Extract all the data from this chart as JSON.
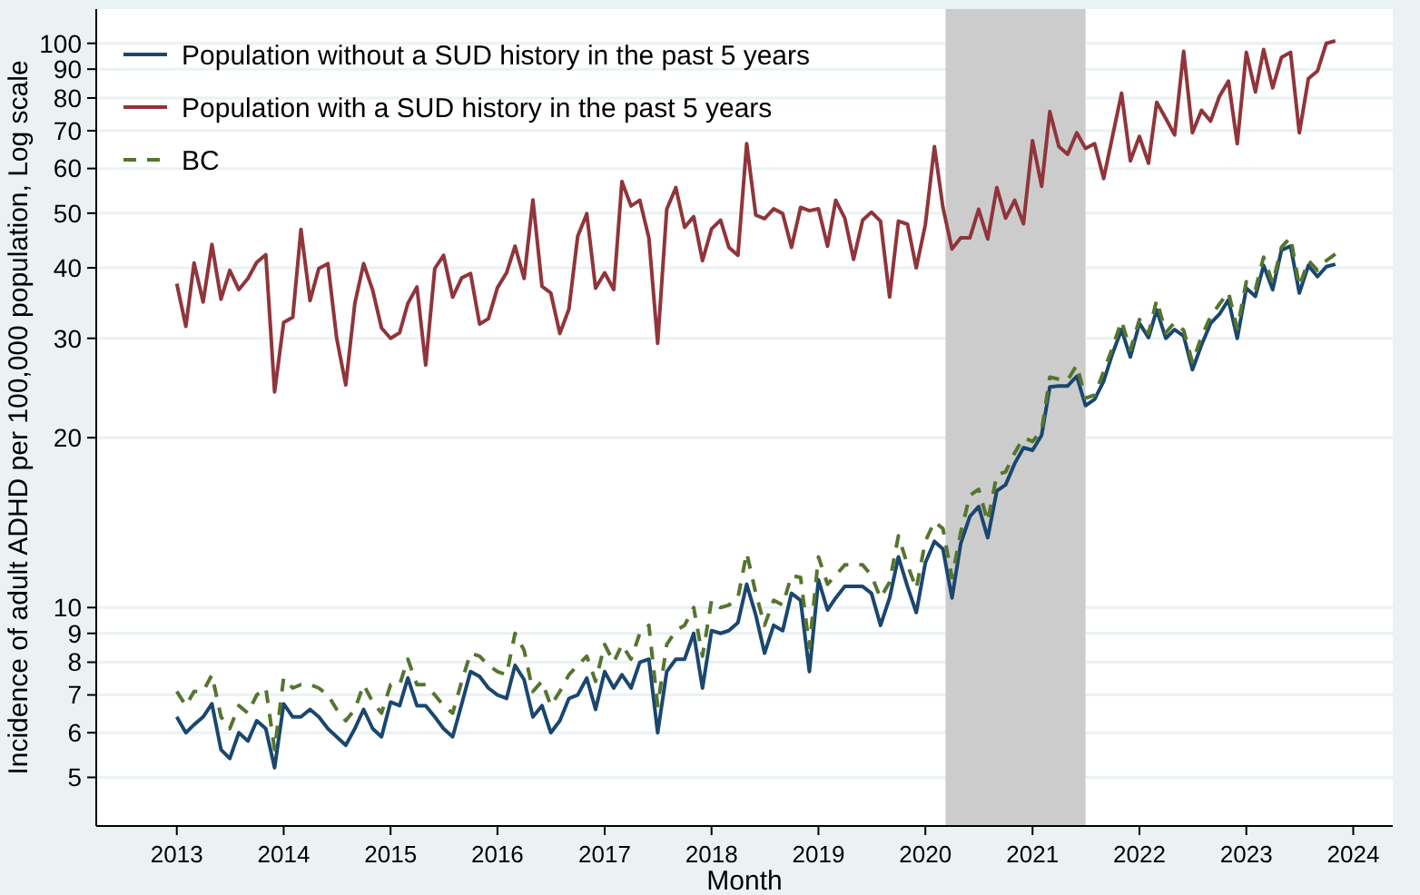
{
  "chart_data": {
    "type": "line",
    "xlabel": "Month",
    "ylabel": "Incidence of adult ADHD per 100,000 population, Log scale",
    "log": "y",
    "grid": "y",
    "legend": "top left",
    "x": [
      "2013-01",
      "2013-02",
      "2013-03",
      "2013-04",
      "2013-05",
      "2013-06",
      "2013-07",
      "2013-08",
      "2013-09",
      "2013-10",
      "2013-11",
      "2013-12",
      "2014-01",
      "2014-02",
      "2014-03",
      "2014-04",
      "2014-05",
      "2014-06",
      "2014-07",
      "2014-08",
      "2014-09",
      "2014-10",
      "2014-11",
      "2014-12",
      "2015-01",
      "2015-02",
      "2015-03",
      "2015-04",
      "2015-05",
      "2015-06",
      "2015-07",
      "2015-08",
      "2015-09",
      "2015-10",
      "2015-11",
      "2015-12",
      "2016-01",
      "2016-02",
      "2016-03",
      "2016-04",
      "2016-05",
      "2016-06",
      "2016-07",
      "2016-08",
      "2016-09",
      "2016-10",
      "2016-11",
      "2016-12",
      "2017-01",
      "2017-02",
      "2017-03",
      "2017-04",
      "2017-05",
      "2017-06",
      "2017-07",
      "2017-08",
      "2017-09",
      "2017-10",
      "2017-11",
      "2017-12",
      "2018-01",
      "2018-02",
      "2018-03",
      "2018-04",
      "2018-05",
      "2018-06",
      "2018-07",
      "2018-08",
      "2018-09",
      "2018-10",
      "2018-11",
      "2018-12",
      "2019-01",
      "2019-02",
      "2019-03",
      "2019-04",
      "2019-05",
      "2019-06",
      "2019-07",
      "2019-08",
      "2019-09",
      "2019-10",
      "2019-11",
      "2019-12",
      "2020-01",
      "2020-02",
      "2020-03",
      "2020-04",
      "2020-05",
      "2020-06",
      "2020-07",
      "2020-08",
      "2020-09",
      "2020-10",
      "2020-11",
      "2020-12",
      "2021-01",
      "2021-02",
      "2021-03",
      "2021-04",
      "2021-05",
      "2021-06",
      "2021-07",
      "2021-08",
      "2021-09",
      "2021-10",
      "2021-11",
      "2021-12",
      "2022-01",
      "2022-02",
      "2022-03",
      "2022-04",
      "2022-05",
      "2022-06",
      "2022-07",
      "2022-08",
      "2022-09",
      "2022-10",
      "2022-11",
      "2022-12",
      "2023-01",
      "2023-02",
      "2023-03",
      "2023-04",
      "2023-05",
      "2023-06",
      "2023-07",
      "2023-08",
      "2023-09",
      "2023-10",
      "2023-11"
    ],
    "series": [
      {
        "name": "Population without a SUD history in the past 5 years",
        "color": "#1a476f",
        "values": [
          6.4,
          6.0,
          6.2,
          6.4,
          6.75,
          5.6,
          5.4,
          6.0,
          5.8,
          6.3,
          6.1,
          5.2,
          6.75,
          6.4,
          6.4,
          6.6,
          6.4,
          6.1,
          5.9,
          5.7,
          6.1,
          6.6,
          6.1,
          5.9,
          6.8,
          6.7,
          7.5,
          6.7,
          6.7,
          6.4,
          6.1,
          5.9,
          6.75,
          7.7,
          7.55,
          7.2,
          7.0,
          6.9,
          7.9,
          7.45,
          6.4,
          6.7,
          6.0,
          6.3,
          6.9,
          7.0,
          7.5,
          6.6,
          7.7,
          7.2,
          7.6,
          7.2,
          8.0,
          8.1,
          6.0,
          7.7,
          8.1,
          8.1,
          9.0,
          7.2,
          9.1,
          9.0,
          9.1,
          9.4,
          11.0,
          9.7,
          8.3,
          9.3,
          9.1,
          10.6,
          10.3,
          7.7,
          11.2,
          9.9,
          10.4,
          10.9,
          10.9,
          10.9,
          10.6,
          9.3,
          10.4,
          12.3,
          10.9,
          9.8,
          12.0,
          13.1,
          12.7,
          10.4,
          13.0,
          14.5,
          15.1,
          13.3,
          16.1,
          16.5,
          18.0,
          19.2,
          19.0,
          20.2,
          24.6,
          24.7,
          24.7,
          25.7,
          22.8,
          23.4,
          25.2,
          28.2,
          31.1,
          27.8,
          31.9,
          30.1,
          33.7,
          30.0,
          31.1,
          30.3,
          26.4,
          29.2,
          31.9,
          33.1,
          35.1,
          30.0,
          36.8,
          35.6,
          40.4,
          36.6,
          43.0,
          43.7,
          36.1,
          40.4,
          38.6,
          40.2,
          40.6
        ]
      },
      {
        "name": "Population with a SUD history in the past 5 years",
        "color": "#90353b",
        "values": [
          37.5,
          31.5,
          40.8,
          34.8,
          44.0,
          35.2,
          39.6,
          36.6,
          38.3,
          40.9,
          42.2,
          24.1,
          32.0,
          32.7,
          46.8,
          35.0,
          39.9,
          40.7,
          30.0,
          24.8,
          34.6,
          40.7,
          36.5,
          31.3,
          30.0,
          30.7,
          34.6,
          37.0,
          26.9,
          39.9,
          42.1,
          35.5,
          38.4,
          39.1,
          31.8,
          32.5,
          36.9,
          39.2,
          43.7,
          38.3,
          52.8,
          37.1,
          36.1,
          30.6,
          33.8,
          45.5,
          49.9,
          36.8,
          39.2,
          36.6,
          56.9,
          51.5,
          52.7,
          45.2,
          29.4,
          50.8,
          55.5,
          47.2,
          49.3,
          41.2,
          46.9,
          48.6,
          43.5,
          42.1,
          66.4,
          49.6,
          48.9,
          50.9,
          49.9,
          43.5,
          51.2,
          50.5,
          50.9,
          43.7,
          52.7,
          49.0,
          41.4,
          48.6,
          50.2,
          48.4,
          35.5,
          48.4,
          47.8,
          40.0,
          47.7,
          65.6,
          51.2,
          43.2,
          45.2,
          45.2,
          50.8,
          45.0,
          55.5,
          49.0,
          52.7,
          47.9,
          67.2,
          55.8,
          75.7,
          65.6,
          63.6,
          69.4,
          65.1,
          66.4,
          57.6,
          68.4,
          81.6,
          61.9,
          68.4,
          61.3,
          78.6,
          73.6,
          68.8,
          96.8,
          69.4,
          76.1,
          72.8,
          80.5,
          85.7,
          66.4,
          96.4,
          82.0,
          97.5,
          83.4,
          94.4,
          96.4,
          69.4,
          86.6,
          89.3,
          100,
          101
        ]
      },
      {
        "name": "BC",
        "color": "#55752f",
        "line_style": "dashed",
        "values": [
          7.1,
          6.7,
          7.1,
          7.1,
          7.6,
          6.4,
          6.1,
          6.7,
          6.5,
          7.0,
          7.2,
          5.6,
          7.5,
          7.2,
          7.3,
          7.3,
          7.2,
          7.0,
          6.6,
          6.3,
          6.6,
          7.3,
          6.8,
          6.5,
          7.3,
          7.3,
          8.1,
          7.3,
          7.3,
          7.0,
          6.7,
          6.5,
          7.4,
          8.3,
          8.2,
          7.9,
          7.7,
          7.6,
          9.0,
          8.4,
          7.1,
          7.4,
          6.7,
          7.1,
          7.6,
          7.9,
          8.2,
          7.4,
          8.6,
          8.0,
          8.6,
          8.1,
          9.0,
          9.3,
          6.7,
          8.6,
          9.1,
          9.3,
          10.0,
          8.2,
          10.3,
          10.0,
          10.1,
          10.4,
          12.5,
          10.6,
          9.3,
          10.3,
          10.1,
          11.4,
          11.3,
          8.5,
          12.3,
          11.0,
          11.4,
          11.9,
          11.9,
          11.9,
          11.4,
          10.4,
          11.1,
          13.4,
          11.9,
          10.8,
          13.1,
          14.2,
          13.8,
          11.3,
          13.6,
          15.8,
          16.2,
          14.2,
          17.2,
          17.4,
          18.8,
          20.0,
          19.7,
          20.6,
          25.6,
          25.4,
          25.3,
          26.9,
          23.5,
          23.8,
          26.2,
          28.9,
          32.2,
          28.6,
          32.4,
          30.6,
          35.1,
          30.7,
          32.0,
          31.0,
          27.2,
          30.2,
          32.8,
          34.5,
          36.2,
          31.2,
          37.8,
          36.6,
          41.8,
          37.6,
          43.5,
          45.3,
          37.1,
          41.2,
          39.6,
          41.2,
          42.3
        ]
      }
    ],
    "xlim": [
      "2012-04-01",
      "2024-05-15"
    ],
    "xticks": [
      "2013",
      "2014",
      "2015",
      "2016",
      "2017",
      "2018",
      "2019",
      "2020",
      "2021",
      "2022",
      "2023",
      "2024"
    ],
    "ylim": [
      4.1,
      115
    ],
    "yticks": [
      5,
      6,
      7,
      8,
      9,
      10,
      20,
      30,
      40,
      50,
      60,
      70,
      80,
      90,
      100
    ],
    "bands": [
      {
        "axis": "x",
        "from": "2020-03-10",
        "to": "2021-07-01",
        "color": "#cccccc"
      }
    ]
  }
}
